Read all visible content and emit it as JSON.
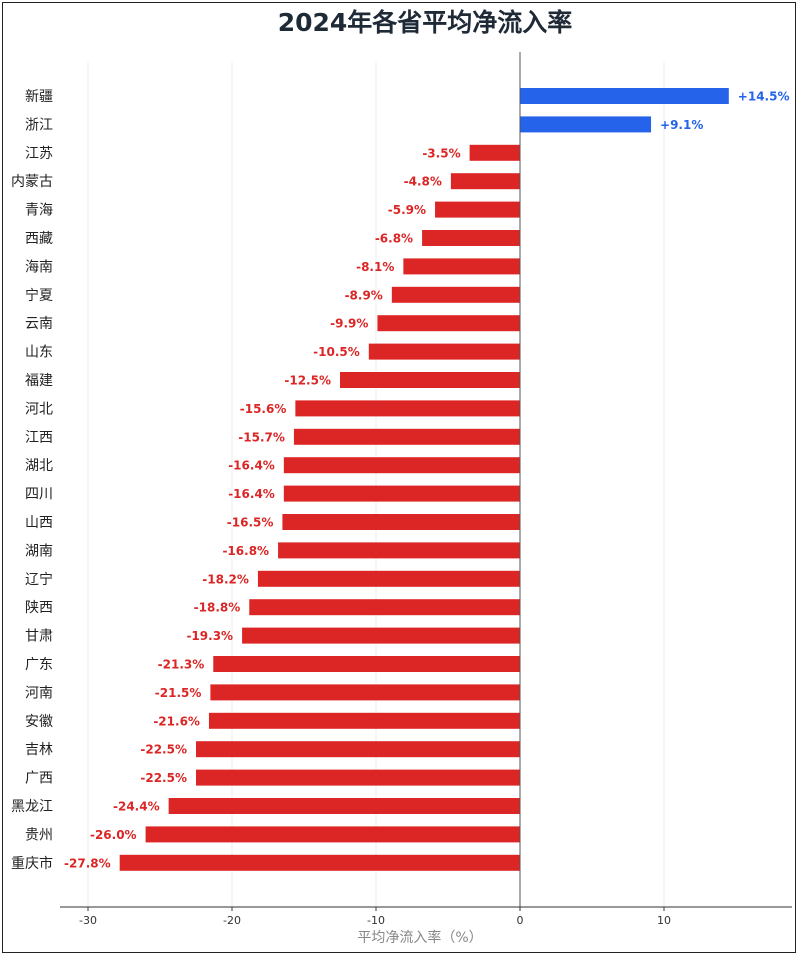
{
  "chart_data": {
    "type": "bar",
    "orientation": "horizontal",
    "title": "2024年各省平均净流入率",
    "xlabel": "平均净流入率（%）",
    "ylabel": "",
    "xlim": [
      -32,
      19
    ],
    "xticks": [
      -30,
      -20,
      -10,
      0,
      10
    ],
    "grid": true,
    "colors": {
      "positive": "#2563eb",
      "negative": "#dc2626"
    },
    "categories": [
      "新疆",
      "浙江",
      "江苏",
      "内蒙古",
      "青海",
      "西藏",
      "海南",
      "宁夏",
      "云南",
      "山东",
      "福建",
      "河北",
      "江西",
      "湖北",
      "四川",
      "山西",
      "湖南",
      "辽宁",
      "陕西",
      "甘肃",
      "广东",
      "河南",
      "安徽",
      "吉林",
      "广西",
      "黑龙江",
      "贵州",
      "重庆市"
    ],
    "values": [
      14.5,
      9.1,
      -3.5,
      -4.8,
      -5.9,
      -6.8,
      -8.1,
      -8.9,
      -9.9,
      -10.5,
      -12.5,
      -15.6,
      -15.7,
      -16.4,
      -16.4,
      -16.5,
      -16.8,
      -18.2,
      -18.8,
      -19.3,
      -21.3,
      -21.5,
      -21.6,
      -22.5,
      -22.5,
      -24.4,
      -26.0,
      -27.8
    ],
    "data_labels": [
      "+14.5%",
      "+9.1%",
      "-3.5%",
      "-4.8%",
      "-5.9%",
      "-6.8%",
      "-8.1%",
      "-8.9%",
      "-9.9%",
      "-10.5%",
      "-12.5%",
      "-15.6%",
      "-15.7%",
      "-16.4%",
      "-16.4%",
      "-16.5%",
      "-16.8%",
      "-18.2%",
      "-18.8%",
      "-19.3%",
      "-21.3%",
      "-21.5%",
      "-21.6%",
      "-22.5%",
      "-22.5%",
      "-24.4%",
      "-26.0%",
      "-27.8%"
    ]
  }
}
